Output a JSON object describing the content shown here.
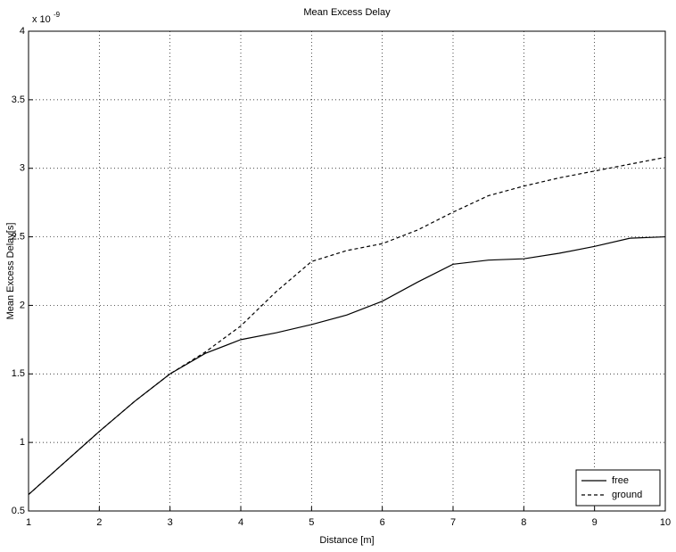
{
  "chart_data": {
    "type": "line",
    "title": "Mean Excess Delay",
    "x_label": "Distance [m]",
    "y_label": "Mean Excess Delay[s]",
    "y_multiplier": "x 10",
    "y_multiplier_exponent": "-9",
    "x": [
      1,
      1.5,
      2,
      2.5,
      3,
      3.5,
      4,
      4.5,
      5,
      5.5,
      6,
      6.5,
      7,
      7.5,
      8,
      8.5,
      9,
      9.5,
      10
    ],
    "series": [
      {
        "name": "free",
        "color": "#000000",
        "dash": false,
        "values": [
          0.62,
          0.85,
          1.08,
          1.3,
          1.5,
          1.65,
          1.75,
          1.8,
          1.86,
          1.93,
          2.03,
          2.17,
          2.3,
          2.33,
          2.34,
          2.38,
          2.43,
          2.49,
          2.5
        ]
      },
      {
        "name": "ground",
        "color": "#000000",
        "dash": true,
        "values": [
          0.62,
          0.85,
          1.08,
          1.3,
          1.5,
          1.66,
          1.85,
          2.1,
          2.32,
          2.4,
          2.45,
          2.55,
          2.68,
          2.8,
          2.87,
          2.93,
          2.98,
          3.03,
          3.08
        ]
      }
    ],
    "xlim": [
      1,
      10
    ],
    "xticks": [
      1,
      2,
      3,
      4,
      5,
      6,
      7,
      8,
      9,
      10
    ],
    "ylim": [
      0.5,
      4
    ],
    "yticks": [
      0.5,
      1,
      1.5,
      2,
      2.5,
      3,
      3.5,
      4
    ],
    "grid": true,
    "legend": "lower right"
  }
}
